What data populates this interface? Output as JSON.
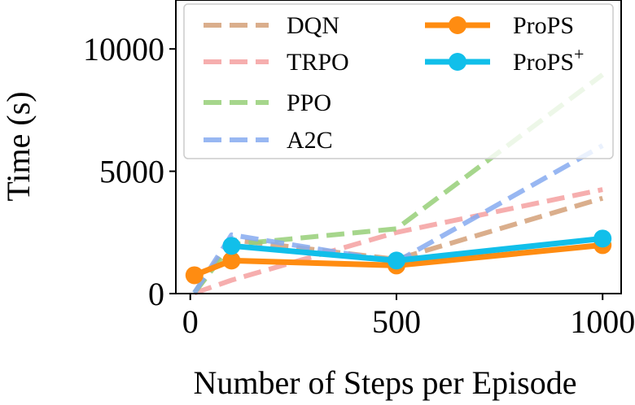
{
  "chart_data": {
    "type": "line",
    "xlabel": "Number of Steps per Episode",
    "ylabel": "Time (s)",
    "xlim": [
      -35,
      1045
    ],
    "ylim": [
      0,
      12000
    ],
    "xticks": [
      0,
      500,
      1000
    ],
    "yticks": [
      0,
      5000,
      10000
    ],
    "xtick_labels": [
      "0",
      "500",
      "1000"
    ],
    "ytick_labels": [
      "0",
      "5000",
      "10000"
    ],
    "legend_position": "top",
    "series": [
      {
        "name": "DQN",
        "style": "dashed",
        "color": "#d4a078",
        "marker": false,
        "x": [
          10,
          100,
          500,
          1000
        ],
        "y": [
          30,
          2200,
          1400,
          3900
        ]
      },
      {
        "name": "TRPO",
        "style": "dashed",
        "color": "#f4a0a0",
        "marker": false,
        "x": [
          10,
          100,
          500,
          1000
        ],
        "y": [
          20,
          550,
          2500,
          4250
        ]
      },
      {
        "name": "PPO",
        "style": "dashed",
        "color": "#96cf78",
        "marker": false,
        "x": [
          10,
          100,
          500,
          1000
        ],
        "y": [
          30,
          2000,
          2650,
          8950
        ]
      },
      {
        "name": "A2C",
        "style": "dashed",
        "color": "#86aaf0",
        "marker": false,
        "x": [
          10,
          100,
          500,
          1000
        ],
        "y": [
          30,
          2400,
          1300,
          6050
        ]
      },
      {
        "name": "ProPS",
        "style": "solid",
        "color": "#ff8c11",
        "marker": true,
        "x": [
          10,
          100,
          500,
          1000
        ],
        "y": [
          750,
          1350,
          1150,
          1980
        ]
      },
      {
        "name": "ProPS",
        "name_sup": "+",
        "style": "solid",
        "color": "#11bfea",
        "marker": true,
        "x": [
          100,
          500,
          1000
        ],
        "y": [
          1950,
          1350,
          2250
        ]
      }
    ]
  }
}
